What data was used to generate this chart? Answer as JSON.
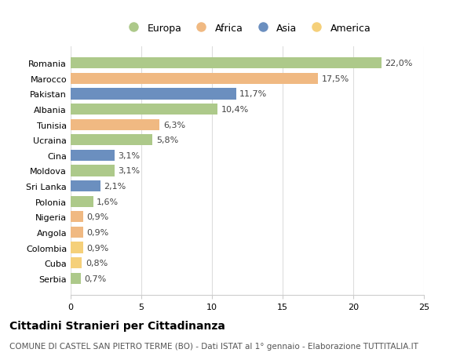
{
  "countries": [
    "Romania",
    "Marocco",
    "Pakistan",
    "Albania",
    "Tunisia",
    "Ucraina",
    "Cina",
    "Moldova",
    "Sri Lanka",
    "Polonia",
    "Nigeria",
    "Angola",
    "Colombia",
    "Cuba",
    "Serbia"
  ],
  "values": [
    22.0,
    17.5,
    11.7,
    10.4,
    6.3,
    5.8,
    3.1,
    3.1,
    2.1,
    1.6,
    0.9,
    0.9,
    0.9,
    0.8,
    0.7
  ],
  "labels": [
    "22,0%",
    "17,5%",
    "11,7%",
    "10,4%",
    "6,3%",
    "5,8%",
    "3,1%",
    "3,1%",
    "2,1%",
    "1,6%",
    "0,9%",
    "0,9%",
    "0,9%",
    "0,8%",
    "0,7%"
  ],
  "continents": [
    "Europa",
    "Africa",
    "Asia",
    "Europa",
    "Africa",
    "Europa",
    "Asia",
    "Europa",
    "Asia",
    "Europa",
    "Africa",
    "Africa",
    "America",
    "America",
    "Europa"
  ],
  "continent_colors": {
    "Europa": "#adc98a",
    "Africa": "#f0b982",
    "Asia": "#6b8fbf",
    "America": "#f5d07a"
  },
  "legend_order": [
    "Europa",
    "Africa",
    "Asia",
    "America"
  ],
  "title": "Cittadini Stranieri per Cittadinanza",
  "subtitle": "COMUNE DI CASTEL SAN PIETRO TERME (BO) - Dati ISTAT al 1° gennaio - Elaborazione TUTTITALIA.IT",
  "xlim": [
    0,
    25
  ],
  "xticks": [
    0,
    5,
    10,
    15,
    20,
    25
  ],
  "background_color": "#ffffff",
  "grid_color": "#dddddd",
  "title_fontsize": 10,
  "subtitle_fontsize": 7.5,
  "label_fontsize": 8,
  "tick_fontsize": 8,
  "legend_fontsize": 9
}
